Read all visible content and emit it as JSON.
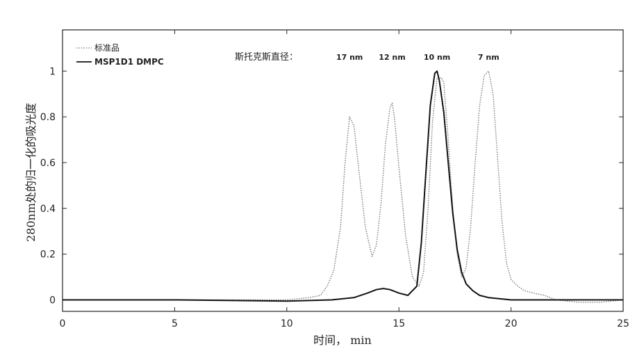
{
  "chart_data": {
    "type": "line",
    "xlabel": "时间， min",
    "ylabel": "280nm处的归一化的吸光度",
    "xlim": [
      0,
      25
    ],
    "ylim": [
      -0.05,
      1.18
    ],
    "x_ticks": [
      "0",
      "5",
      "10",
      "15",
      "20",
      "25"
    ],
    "y_ticks": [
      "0",
      "0.2",
      "0.4",
      "0.6",
      "0.8",
      "1"
    ],
    "grid": false,
    "legend_position": "top-left",
    "annotation_label": "斯托克斯直径：",
    "peak_annotations": [
      {
        "label": "17 nm",
        "x": 12.8
      },
      {
        "label": "12 nm",
        "x": 14.7
      },
      {
        "label": "10 nm",
        "x": 16.7
      },
      {
        "label": "7 nm",
        "x": 19.0
      }
    ],
    "series": [
      {
        "name": "标准品",
        "style": "dotted",
        "color": "#7a7a7a",
        "x": [
          0,
          5,
          10,
          11.0,
          11.5,
          11.8,
          12.1,
          12.4,
          12.6,
          12.8,
          13.0,
          13.2,
          13.5,
          13.8,
          14.0,
          14.2,
          14.4,
          14.6,
          14.7,
          14.8,
          15.0,
          15.3,
          15.6,
          15.9,
          16.1,
          16.3,
          16.5,
          16.7,
          16.9,
          17.0,
          17.2,
          17.4,
          17.6,
          17.8,
          18.0,
          18.2,
          18.4,
          18.6,
          18.8,
          19.0,
          19.2,
          19.4,
          19.6,
          19.8,
          20.0,
          20.3,
          20.6,
          21.0,
          21.5,
          22.0,
          23.0,
          24.0,
          25.0
        ],
        "y": [
          0,
          0,
          0,
          0.01,
          0.02,
          0.06,
          0.13,
          0.32,
          0.6,
          0.8,
          0.76,
          0.58,
          0.32,
          0.19,
          0.24,
          0.42,
          0.68,
          0.84,
          0.86,
          0.8,
          0.58,
          0.28,
          0.1,
          0.06,
          0.12,
          0.4,
          0.78,
          0.97,
          0.97,
          0.95,
          0.7,
          0.4,
          0.2,
          0.1,
          0.14,
          0.32,
          0.6,
          0.85,
          0.98,
          1.0,
          0.9,
          0.62,
          0.34,
          0.16,
          0.09,
          0.06,
          0.04,
          0.03,
          0.02,
          0.0,
          -0.01,
          -0.01,
          0
        ]
      },
      {
        "name": "MSP1D1 DMPC",
        "style": "solid",
        "color": "#111111",
        "x": [
          0,
          5,
          10,
          12.0,
          13.0,
          13.6,
          14.0,
          14.3,
          14.6,
          15.0,
          15.4,
          15.8,
          16.0,
          16.2,
          16.4,
          16.6,
          16.7,
          16.8,
          17.0,
          17.2,
          17.4,
          17.6,
          17.8,
          18.0,
          18.3,
          18.6,
          19.0,
          19.5,
          20.0,
          21.0,
          22.0,
          25.0
        ],
        "y": [
          0,
          0,
          -0.005,
          0.0,
          0.01,
          0.03,
          0.045,
          0.05,
          0.045,
          0.03,
          0.02,
          0.06,
          0.25,
          0.55,
          0.85,
          0.99,
          1.0,
          0.96,
          0.82,
          0.6,
          0.38,
          0.22,
          0.12,
          0.07,
          0.04,
          0.02,
          0.01,
          0.005,
          0.0,
          0.0,
          0.0,
          0.0
        ]
      }
    ]
  }
}
